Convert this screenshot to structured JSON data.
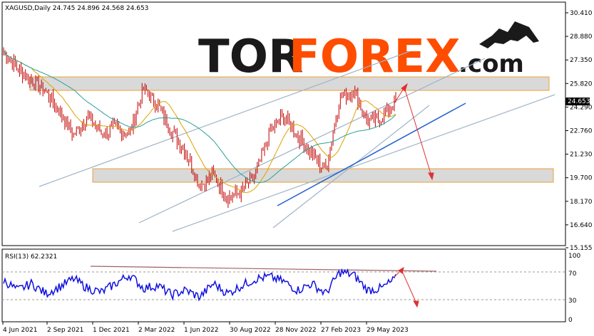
{
  "header": {
    "symbol_line": "XAGUSD,Daily  24.745 24.896 24.568 24.653"
  },
  "logo": {
    "part1": "TOR",
    "part2": "FOREX",
    "part3": ".com"
  },
  "price_axis": {
    "ticks": [
      "30.410",
      "28.880",
      "27.350",
      "25.820",
      "24.290",
      "22.760",
      "21.230",
      "19.700",
      "18.170",
      "16.640",
      "15.155"
    ],
    "current_price": "24.653"
  },
  "date_axis": {
    "ticks": [
      "4 Jun 2021",
      "2 Sep 2021",
      "1 Dec 2021",
      "2 Mar 2022",
      "1 Jun 2022",
      "30 Aug 2022",
      "28 Nov 2022",
      "27 Feb 2023",
      "29 May 2023"
    ]
  },
  "rsi": {
    "label": "RSI(13) 62.2321",
    "ticks": [
      "100",
      "70",
      "30",
      "0"
    ]
  },
  "colors": {
    "candles": "#c00000",
    "ma_fast": "#e0a000",
    "ma_slow": "#2aa198",
    "trendlines": "#9db4c8",
    "blue_trend": "#2060d0",
    "zones": "#d9d9d9",
    "zone_border": "#f0a030",
    "arrows": "#e03030",
    "rsi_line": "#1010e0",
    "rsi_trend": "#a06060"
  },
  "chart_data": {
    "type": "line",
    "title": "XAGUSD,Daily",
    "ohlc_last": {
      "open": 24.745,
      "high": 24.896,
      "low": 24.568,
      "close": 24.653
    },
    "ylim": [
      15.155,
      30.41
    ],
    "x": [
      "2021-05-15",
      "2021-06-04",
      "2021-07-01",
      "2021-08-01",
      "2021-09-02",
      "2021-10-01",
      "2021-11-01",
      "2021-12-01",
      "2022-01-01",
      "2022-02-01",
      "2022-03-02",
      "2022-04-01",
      "2022-05-01",
      "2022-06-01",
      "2022-07-01",
      "2022-08-01",
      "2022-08-30",
      "2022-10-01",
      "2022-11-01",
      "2022-11-28",
      "2023-01-01",
      "2023-02-01",
      "2023-02-27",
      "2023-03-10",
      "2023-04-01",
      "2023-05-01",
      "2023-05-29",
      "2023-06-20",
      "2023-07-01"
    ],
    "series": [
      {
        "values": [
          27.9,
          26.8,
          26.0,
          25.3,
          24.0,
          22.5,
          23.7,
          22.6,
          22.9,
          22.6,
          25.5,
          24.4,
          22.7,
          21.4,
          19.2,
          19.9,
          18.4,
          18.8,
          19.9,
          22.6,
          23.8,
          22.4,
          21.2,
          20.2,
          24.9,
          25.4,
          23.3,
          23.6,
          24.7
        ]
      }
    ],
    "rsi": {
      "label": "RSI(13)",
      "last": 62.2321,
      "ylim": [
        0,
        100
      ],
      "levels": [
        70,
        30
      ],
      "values": [
        60,
        45,
        55,
        40,
        50,
        62,
        48,
        42,
        55,
        68,
        48,
        52,
        38,
        45,
        35,
        55,
        40,
        52,
        62,
        65,
        58,
        45,
        55,
        40,
        72,
        68,
        45,
        48,
        62
      ]
    }
  }
}
